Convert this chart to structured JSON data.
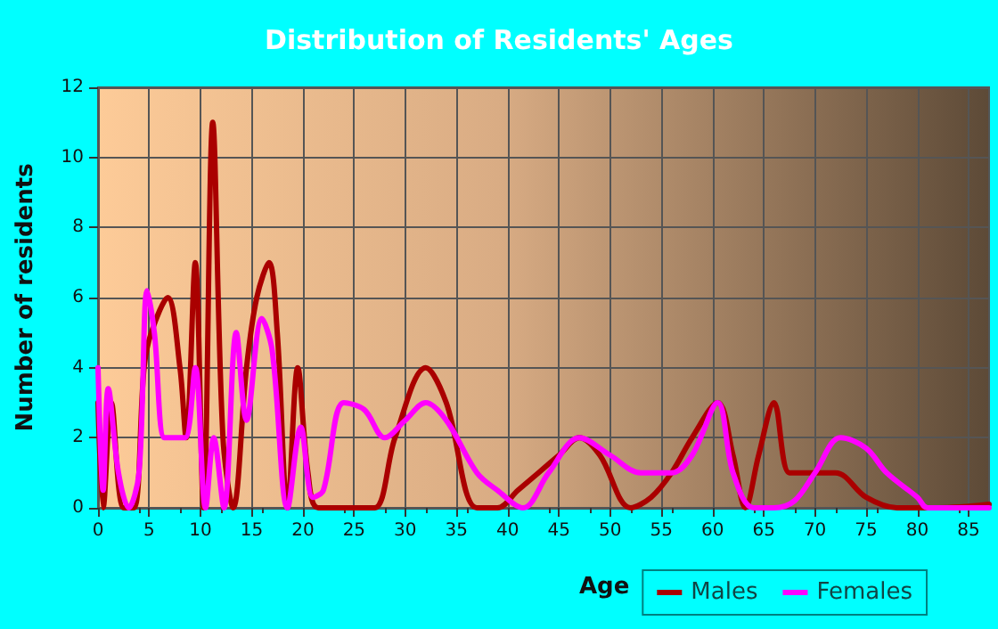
{
  "chart_data": {
    "type": "line",
    "title": "Distribution of Residents' Ages",
    "xlabel": "Age",
    "ylabel": "Number of residents",
    "xlim": [
      0,
      87
    ],
    "xticks": [
      0,
      5,
      10,
      15,
      20,
      25,
      30,
      35,
      40,
      45,
      50,
      55,
      60,
      65,
      70,
      75,
      80,
      85
    ],
    "ylim": [
      0,
      12
    ],
    "yticks": [
      0,
      2,
      4,
      6,
      8,
      10,
      12
    ],
    "grid": true,
    "legend": "bottom right",
    "marker": "none",
    "line_style": "solid",
    "series": [
      {
        "name": "Males",
        "color": "#aa0000",
        "x": [
          0,
          0.5,
          1.3,
          2.5,
          3.5,
          4.5,
          5.2,
          6.8,
          8,
          8.6,
          9.5,
          10.3,
          11.2,
          12.2,
          13.2,
          14.5,
          15.5,
          16.7,
          17.5,
          18.5,
          19.5,
          20.5,
          21.5,
          25,
          27,
          29,
          32,
          34,
          37,
          39,
          41,
          43,
          45,
          47,
          49,
          52,
          54,
          56,
          58,
          60.5,
          62,
          63.2,
          64.5,
          66,
          67.5,
          69,
          72,
          75,
          78,
          82,
          87
        ],
        "values": [
          3,
          0,
          3,
          0,
          0,
          4,
          5,
          6,
          4,
          2,
          7,
          0,
          11,
          2,
          0,
          4,
          6,
          7,
          5,
          0,
          4,
          1,
          0,
          0,
          0,
          2,
          4,
          3,
          0,
          0,
          0.5,
          1,
          1.5,
          2,
          1.5,
          0,
          0.3,
          1,
          2,
          3,
          1.5,
          0,
          1.5,
          3,
          1,
          1,
          1,
          0.3,
          0,
          0,
          0.1
        ]
      },
      {
        "name": "Females",
        "color": "#ff00ff",
        "x": [
          0,
          0.5,
          1,
          2,
          3,
          4,
          4.8,
          5.5,
          6.5,
          7.5,
          8.5,
          9.5,
          10.5,
          11.3,
          12.3,
          13.5,
          14.5,
          16,
          17,
          18.5,
          19.8,
          21,
          22,
          24,
          26,
          28,
          30,
          32,
          34,
          37,
          39,
          41.5,
          44,
          47,
          50,
          53,
          56,
          58,
          60.5,
          62,
          64,
          66,
          68,
          70,
          72.5,
          75,
          77,
          80,
          81,
          87
        ],
        "values": [
          4,
          0.5,
          3.4,
          1,
          0,
          1,
          6.2,
          5,
          2,
          2,
          2,
          4,
          0,
          2,
          0,
          5,
          2.5,
          5.4,
          4.5,
          0,
          2.3,
          0.3,
          0.5,
          3,
          2.8,
          2,
          2.5,
          3,
          2.5,
          1,
          0.5,
          0,
          1,
          2,
          1.5,
          1,
          1,
          1.5,
          3,
          1,
          0,
          0,
          0.2,
          1,
          2,
          1.7,
          1,
          0.3,
          0,
          0
        ]
      }
    ]
  }
}
